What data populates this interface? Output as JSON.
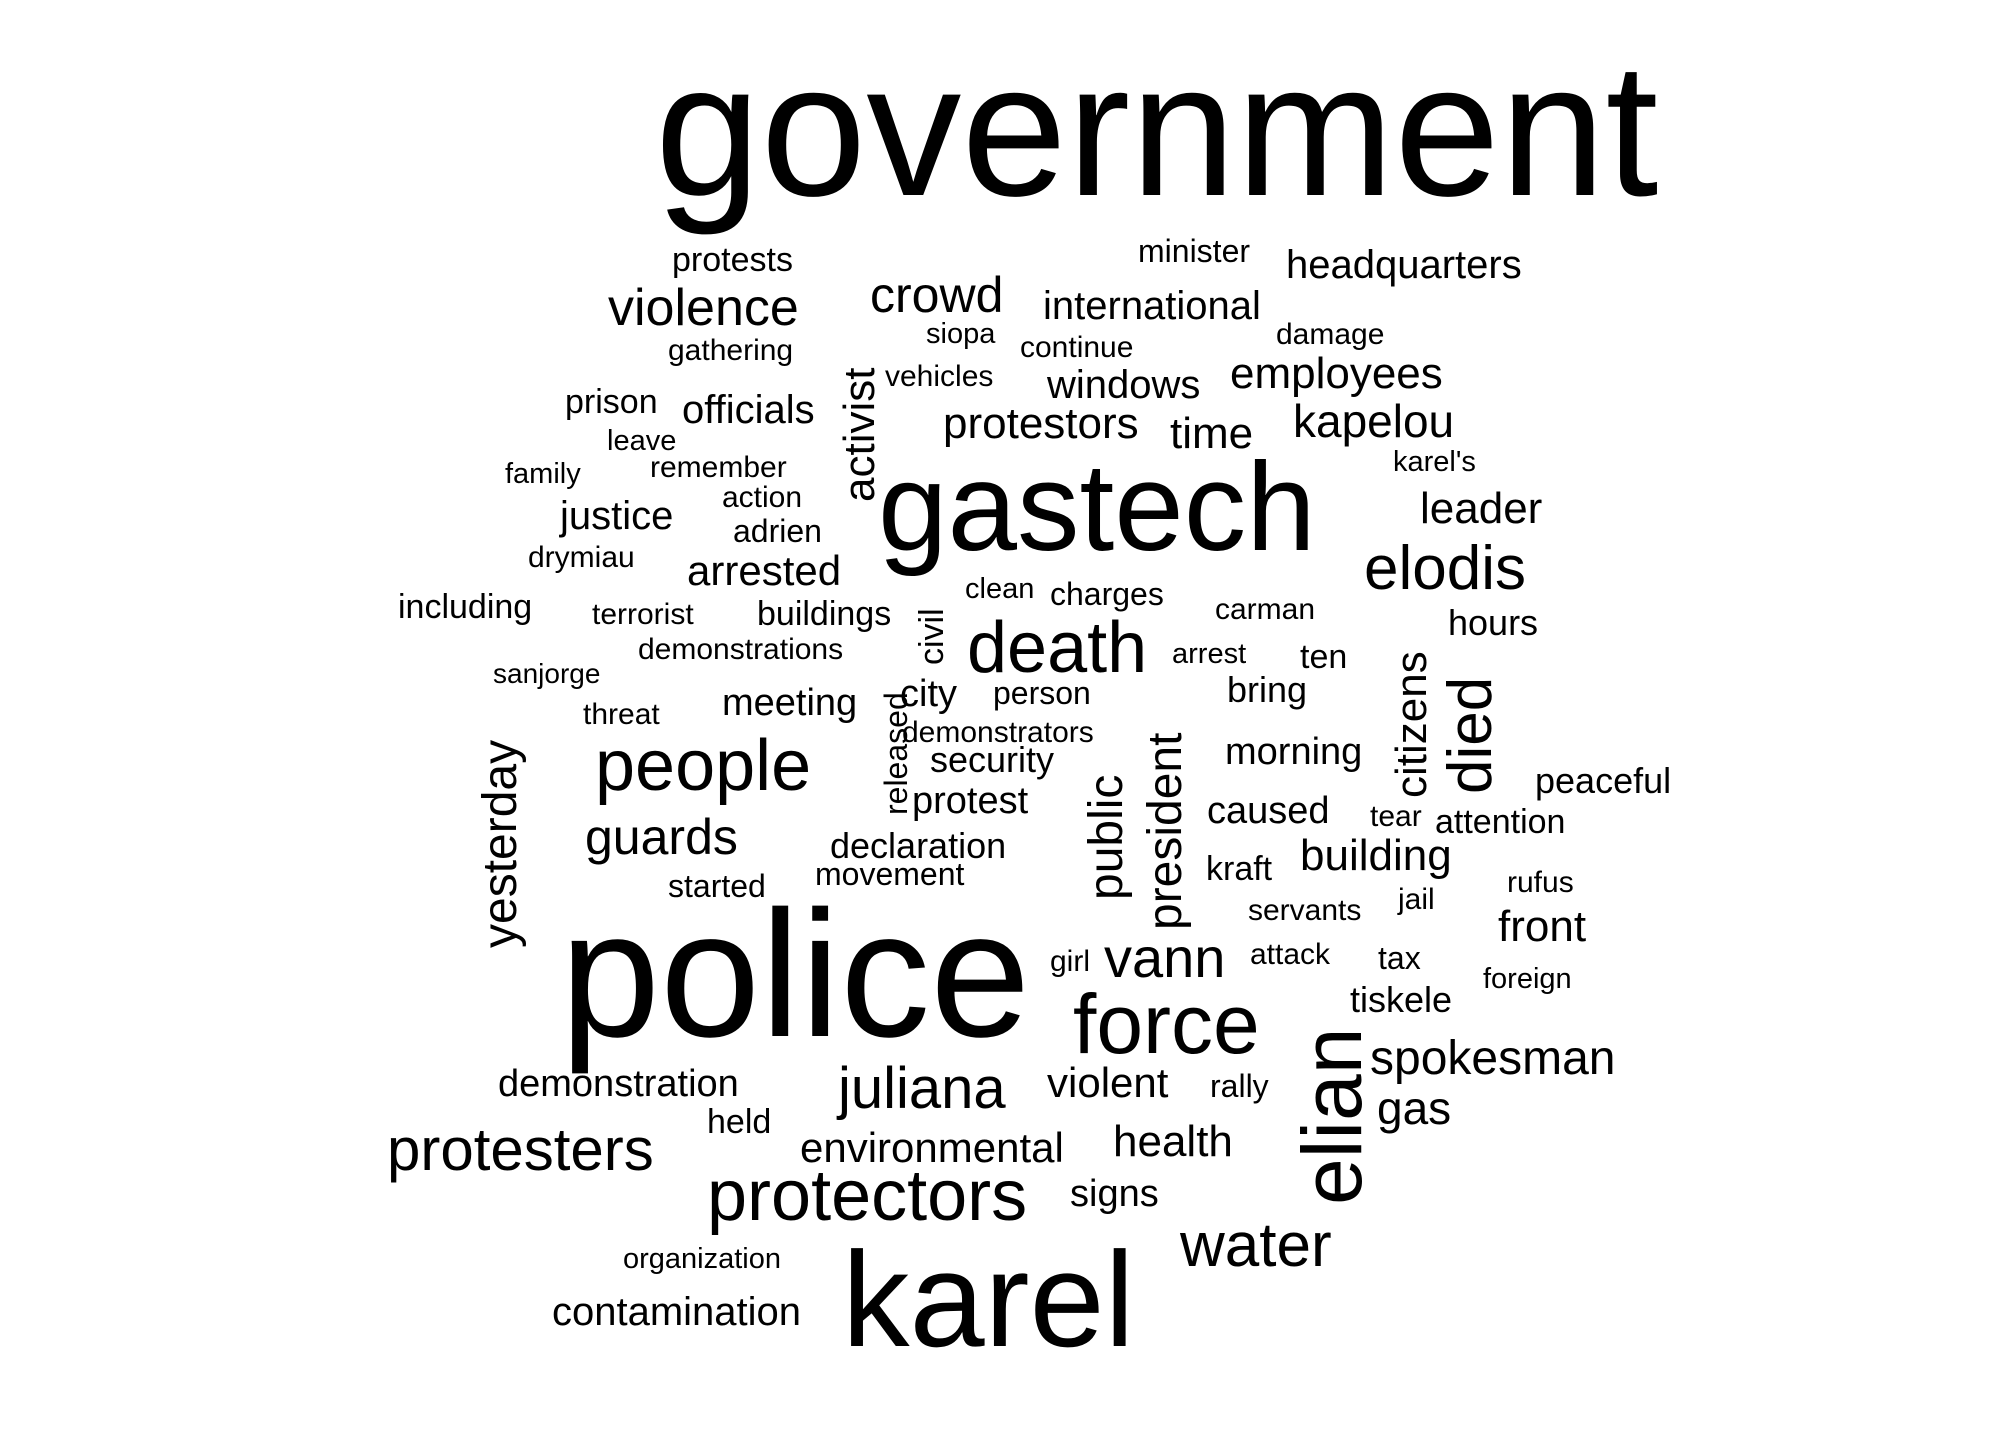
{
  "text_color": "#000000",
  "background_color": "#ffffff",
  "words": [
    {
      "text": "government",
      "weight": 100
    },
    {
      "text": "police",
      "weight": 90
    },
    {
      "text": "gastech",
      "weight": 78
    },
    {
      "text": "karel",
      "weight": 75
    },
    {
      "text": "elian",
      "weight": 58
    },
    {
      "text": "force",
      "weight": 57
    },
    {
      "text": "death",
      "weight": 50
    },
    {
      "text": "protectors",
      "weight": 50
    },
    {
      "text": "people",
      "weight": 50
    },
    {
      "text": "died",
      "weight": 44
    },
    {
      "text": "elodis",
      "weight": 44
    },
    {
      "text": "protesters",
      "weight": 44
    },
    {
      "text": "water",
      "weight": 44
    },
    {
      "text": "juliana",
      "weight": 42
    },
    {
      "text": "president",
      "weight": 40
    },
    {
      "text": "violence",
      "weight": 40
    },
    {
      "text": "yesterday",
      "weight": 36
    },
    {
      "text": "guards",
      "weight": 38
    },
    {
      "text": "crowd",
      "weight": 38
    },
    {
      "text": "public",
      "weight": 36
    },
    {
      "text": "vann",
      "weight": 40
    },
    {
      "text": "activist",
      "weight": 32
    },
    {
      "text": "citizens",
      "weight": 32
    },
    {
      "text": "spokesman",
      "weight": 36
    },
    {
      "text": "kapelou",
      "weight": 33
    },
    {
      "text": "employees",
      "weight": 32
    },
    {
      "text": "protestors",
      "weight": 33
    },
    {
      "text": "arrested",
      "weight": 33
    },
    {
      "text": "building",
      "weight": 33
    },
    {
      "text": "environmental",
      "weight": 32
    },
    {
      "text": "leader",
      "weight": 33
    },
    {
      "text": "health",
      "weight": 33
    },
    {
      "text": "violent",
      "weight": 32
    },
    {
      "text": "time",
      "weight": 32
    },
    {
      "text": "international",
      "weight": 30
    },
    {
      "text": "windows",
      "weight": 30
    },
    {
      "text": "headquarters",
      "weight": 30
    },
    {
      "text": "gas",
      "weight": 32
    },
    {
      "text": "front",
      "weight": 32
    },
    {
      "text": "signs",
      "weight": 28
    },
    {
      "text": "contamination",
      "weight": 28
    },
    {
      "text": "officials",
      "weight": 28
    },
    {
      "text": "justice",
      "weight": 28
    },
    {
      "text": "meeting",
      "weight": 28
    },
    {
      "text": "morning",
      "weight": 28
    },
    {
      "text": "protest",
      "weight": 28
    },
    {
      "text": "caused",
      "weight": 28
    },
    {
      "text": "demonstration",
      "weight": 28
    },
    {
      "text": "peaceful",
      "weight": 26
    },
    {
      "text": "declaration",
      "weight": 26
    },
    {
      "text": "hours",
      "weight": 26
    },
    {
      "text": "bring",
      "weight": 26
    },
    {
      "text": "security",
      "weight": 26
    },
    {
      "text": "tiskele",
      "weight": 26
    },
    {
      "text": "city",
      "weight": 26
    },
    {
      "text": "released",
      "weight": 24
    },
    {
      "text": "civil",
      "weight": 24
    },
    {
      "text": "attention",
      "weight": 24
    },
    {
      "text": "protests",
      "weight": 24
    },
    {
      "text": "including",
      "weight": 24
    },
    {
      "text": "buildings",
      "weight": 24
    },
    {
      "text": "minister",
      "weight": 24
    },
    {
      "text": "prison",
      "weight": 24
    },
    {
      "text": "kraft",
      "weight": 24
    },
    {
      "text": "held",
      "weight": 24
    },
    {
      "text": "rally",
      "weight": 24
    },
    {
      "text": "movement",
      "weight": 24
    },
    {
      "text": "charges",
      "weight": 24
    },
    {
      "text": "started",
      "weight": 24
    },
    {
      "text": "continue",
      "weight": 22
    },
    {
      "text": "person",
      "weight": 24
    },
    {
      "text": "ten",
      "weight": 24
    },
    {
      "text": "carman",
      "weight": 22
    },
    {
      "text": "adrien",
      "weight": 24
    },
    {
      "text": "demonstrators",
      "weight": 22
    },
    {
      "text": "terrorist",
      "weight": 22
    },
    {
      "text": "tear",
      "weight": 22
    },
    {
      "text": "tax",
      "weight": 22
    },
    {
      "text": "servants",
      "weight": 22
    },
    {
      "text": "gathering",
      "weight": 22
    },
    {
      "text": "vehicles",
      "weight": 22
    },
    {
      "text": "demonstrations",
      "weight": 22
    },
    {
      "text": "remember",
      "weight": 22
    },
    {
      "text": "drymiau",
      "weight": 22
    },
    {
      "text": "damage",
      "weight": 22
    },
    {
      "text": "threat",
      "weight": 22
    },
    {
      "text": "attack",
      "weight": 22
    },
    {
      "text": "jail",
      "weight": 22
    },
    {
      "text": "sanjorge",
      "weight": 20
    },
    {
      "text": "action",
      "weight": 22
    },
    {
      "text": "girl",
      "weight": 22
    },
    {
      "text": "rufus",
      "weight": 21
    },
    {
      "text": "organization",
      "weight": 21
    },
    {
      "text": "siopa",
      "weight": 21
    },
    {
      "text": "arrest",
      "weight": 21
    },
    {
      "text": "karel's",
      "weight": 21
    },
    {
      "text": "family",
      "weight": 21
    },
    {
      "text": "leave",
      "weight": 21
    },
    {
      "text": "clean",
      "weight": 21
    },
    {
      "text": "foreign",
      "weight": 21
    }
  ]
}
